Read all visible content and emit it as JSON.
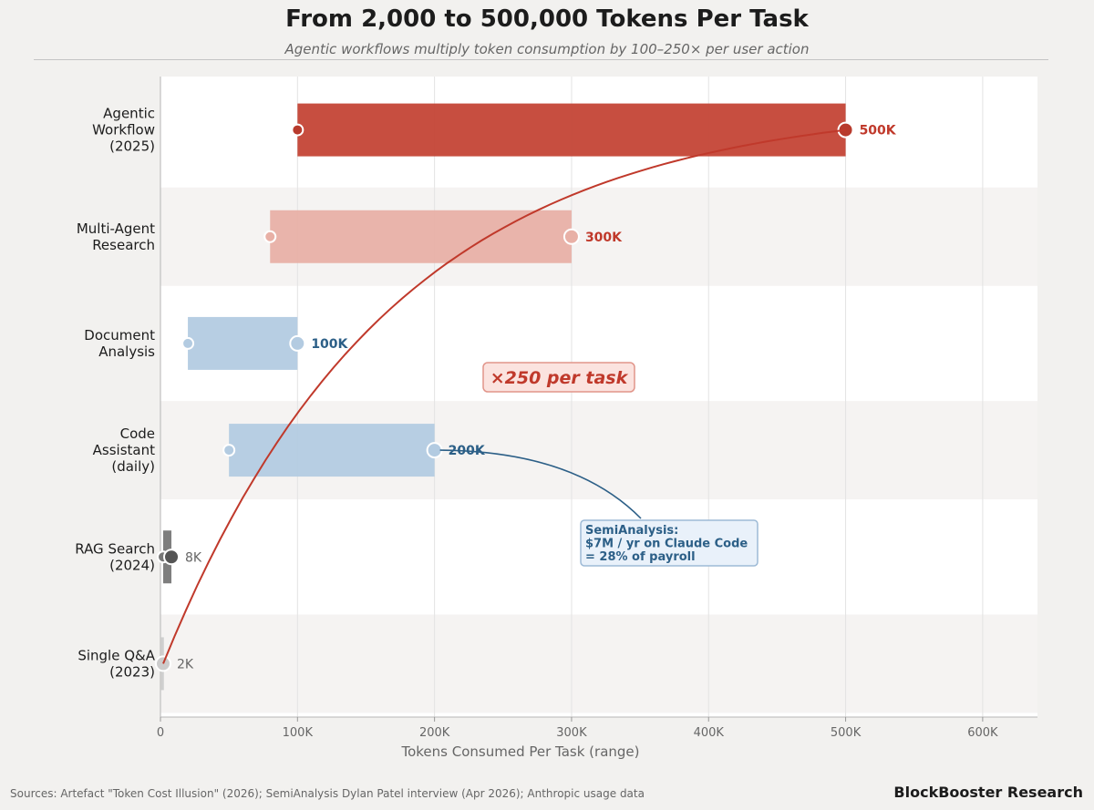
{
  "chart_data": {
    "type": "bar",
    "title": "From 2,000 to 500,000 Tokens Per Task",
    "subtitle": "Agentic workflows multiply token consumption by 100–250× per user action",
    "xlabel": "Tokens Consumed Per Task  (range)",
    "ylabel": "",
    "xlim": [
      0,
      640000
    ],
    "xticks": [
      0,
      100000,
      200000,
      300000,
      400000,
      500000,
      600000
    ],
    "xtick_labels": [
      "0",
      "100K",
      "200K",
      "300K",
      "400K",
      "500K",
      "600K"
    ],
    "orientation": "horizontal",
    "grid": "vertical",
    "categories": [
      "Agentic\nWorkflow\n(2025)",
      "Multi-Agent\nResearch",
      "Document\nAnalysis",
      "Code\nAssistant\n(daily)",
      "RAG Search\n(2024)",
      "Single Q&A\n(2023)"
    ],
    "ranges": [
      {
        "low": 100000,
        "high": 500000,
        "label": "500K",
        "color": "#c44536",
        "label_color": "#c0392b",
        "bold": true
      },
      {
        "low": 80000,
        "high": 300000,
        "label": "300K",
        "color": "#e8b0a6",
        "label_color": "#c0392b",
        "bold": true
      },
      {
        "low": 20000,
        "high": 100000,
        "label": "100K",
        "color": "#b3cbe1",
        "label_color": "#2c5f87",
        "bold": true
      },
      {
        "low": 50000,
        "high": 200000,
        "label": "200K",
        "color": "#b3cbe1",
        "label_color": "#2c5f87",
        "bold": true
      },
      {
        "low": 2000,
        "high": 8000,
        "label": "8K",
        "color": "#777777",
        "label_color": "#666666",
        "bold": false
      },
      {
        "low": 500,
        "high": 2000,
        "label": "2K",
        "color": "#cccccc",
        "label_color": "#666666",
        "bold": false
      }
    ],
    "trend_curve": {
      "from_label": "2K",
      "to_label": "500K",
      "color": "#c0392b"
    },
    "annotations": [
      {
        "text": "×250 per task",
        "style": "boxed-red"
      },
      {
        "text": "SemiAnalysis:\n$7M / yr on Claude Code\n= 28% of payroll",
        "points_to": "Code Assistant 200K",
        "style": "boxed-blue"
      }
    ]
  },
  "footer": {
    "sources": "Sources: Artefact \"Token Cost Illusion\" (2026); SemiAnalysis Dylan Patel interview (Apr 2026); Anthropic usage data",
    "brand": "BlockBooster Research"
  }
}
